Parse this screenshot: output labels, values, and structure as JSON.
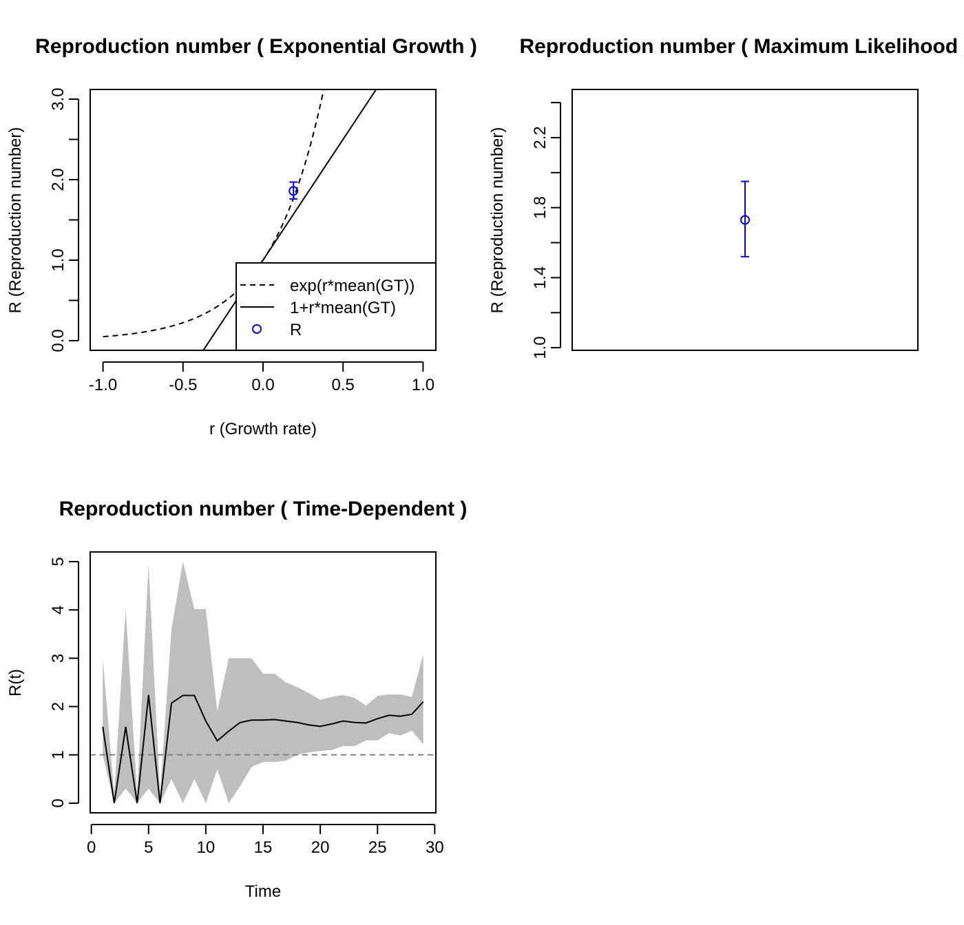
{
  "chart_data": [
    {
      "type": "line",
      "title": "Reproduction number ( Exponential Growth )",
      "xlabel": "r (Growth rate)",
      "ylabel": "R (Reproduction number)",
      "xlim": [
        -1.08,
        1.08
      ],
      "ylim": [
        -0.12,
        3.12
      ],
      "xticks": [
        "-1.0",
        "-0.5",
        "0.0",
        "0.5",
        "1.0"
      ],
      "yticks": [
        "0.0",
        "1.0",
        "2.0",
        "3.0"
      ],
      "grid": false,
      "legend_position": "bottom-right",
      "series": [
        {
          "name": "exp(r*mean(GT))",
          "function": "exp",
          "slope": 3.0
        },
        {
          "name": "1+r*mean(GT)",
          "function": "linear",
          "slope": 3.0
        }
      ],
      "point": {
        "name": "R",
        "x": 0.19,
        "y": 1.86,
        "lower": 1.76,
        "upper": 1.97,
        "color": "#0000ff"
      }
    },
    {
      "type": "scatter",
      "title": "Reproduction number ( Maximum Likelihood )",
      "xlabel": "",
      "ylabel": "R (Reproduction number)",
      "ylim": [
        0.985,
        2.475
      ],
      "yticks": [
        "1.0",
        "1.4",
        "1.8",
        "2.2"
      ],
      "grid": false,
      "point": {
        "y": 1.73,
        "lower": 1.52,
        "upper": 1.95,
        "color": "#0000ff"
      }
    },
    {
      "type": "area",
      "title": "Reproduction number ( Time-Dependent )",
      "xlabel": "Time",
      "ylabel": "R(t)",
      "xlim": [
        -0.1,
        30.1
      ],
      "ylim": [
        -0.2,
        5.2
      ],
      "xticks": [
        "0",
        "5",
        "10",
        "15",
        "20",
        "25",
        "30"
      ],
      "yticks": [
        "0",
        "1",
        "2",
        "3",
        "4",
        "5"
      ],
      "grid": false,
      "reference_line": 1,
      "band_color": "#bebebe",
      "x": [
        1,
        2,
        3,
        4,
        5,
        6,
        7,
        8,
        9,
        10,
        11,
        12,
        13,
        14,
        15,
        16,
        17,
        18,
        19,
        20,
        21,
        22,
        23,
        24,
        25,
        26,
        27,
        28,
        29
      ],
      "series": [
        {
          "values": [
            1.58,
            0.0,
            1.58,
            0.0,
            2.24,
            0.0,
            2.07,
            2.23,
            2.23,
            1.7,
            1.29,
            1.49,
            1.67,
            1.72,
            1.72,
            1.73,
            1.7,
            1.67,
            1.62,
            1.59,
            1.64,
            1.7,
            1.67,
            1.66,
            1.75,
            1.82,
            1.8,
            1.84,
            2.1
          ]
        },
        {
          "values": [
            0.99,
            0.0,
            0.3,
            0.0,
            0.3,
            0.0,
            0.5,
            0.0,
            0.5,
            0.0,
            0.7,
            0.0,
            0.35,
            0.75,
            0.85,
            0.85,
            0.88,
            1.0,
            1.05,
            1.08,
            1.1,
            1.18,
            1.18,
            1.3,
            1.3,
            1.45,
            1.4,
            1.5,
            1.22
          ]
        },
        {
          "values": [
            3.0,
            0.2,
            4.03,
            0.2,
            4.95,
            0.2,
            3.6,
            5.0,
            4.02,
            4.02,
            1.9,
            3.0,
            3.0,
            3.0,
            2.68,
            2.68,
            2.5,
            2.4,
            2.28,
            2.14,
            2.2,
            2.24,
            2.18,
            2.02,
            2.22,
            2.25,
            2.25,
            2.2,
            3.08
          ]
        }
      ]
    }
  ]
}
